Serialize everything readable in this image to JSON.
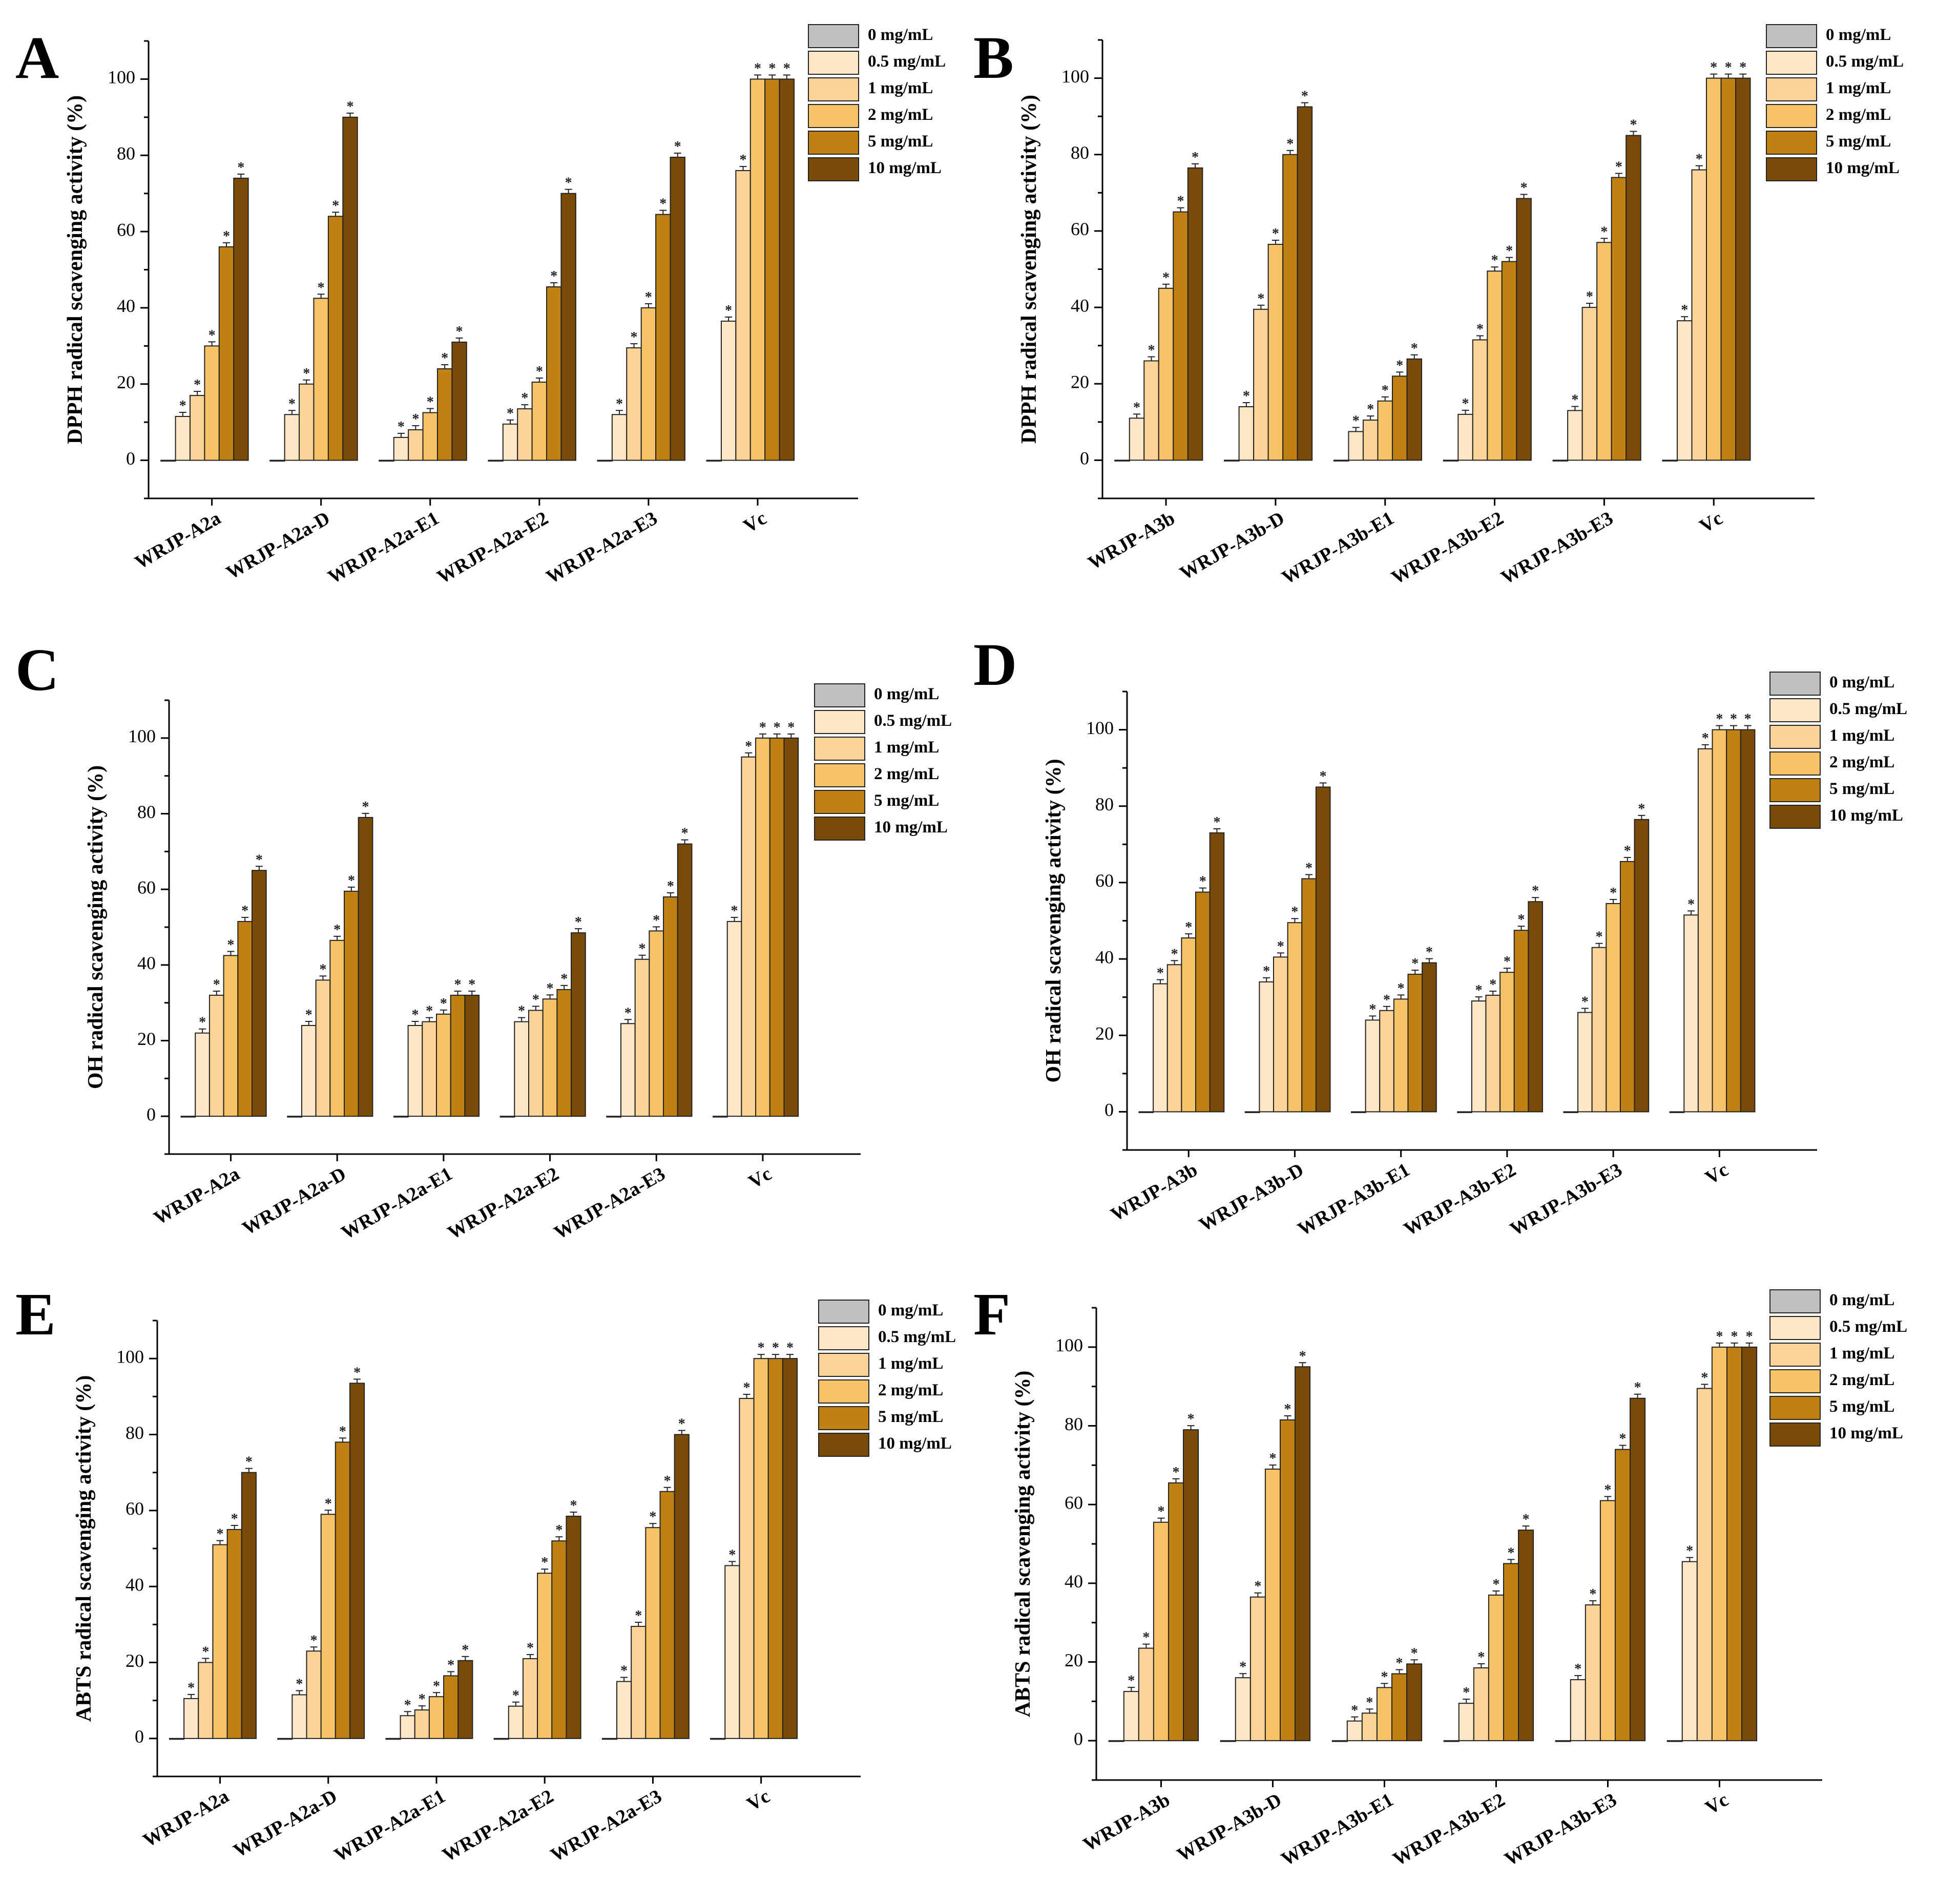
{
  "legend": [
    "0 mg/mL",
    "0.5 mg/mL",
    "1 mg/mL",
    "2 mg/mL",
    "5 mg/mL",
    "10 mg/mL"
  ],
  "colors": [
    "#c0c0c0",
    "#fde7c6",
    "#fdd497",
    "#f7c367",
    "#bf8212",
    "#7a4a08"
  ],
  "significance_mark": "*",
  "chart_data": [
    {
      "panel": "A",
      "type": "bar",
      "ylabel": "DPPH radical scavenging activity (%)",
      "ylim": [
        -10,
        110
      ],
      "yticks": [
        0,
        20,
        40,
        60,
        80,
        100
      ],
      "categories": [
        "WRJP-A2a",
        "WRJP-A2a-D",
        "WRJP-A2a-E1",
        "WRJP-A2a-E2",
        "WRJP-A2a-E3",
        "Vc"
      ],
      "series": [
        {
          "name": "0 mg/mL",
          "values": [
            0,
            0,
            0,
            0,
            0,
            0
          ]
        },
        {
          "name": "0.5 mg/mL",
          "values": [
            11.5,
            12,
            6,
            9.5,
            12,
            36.5
          ]
        },
        {
          "name": "1 mg/mL",
          "values": [
            17,
            20,
            8,
            13.5,
            29.5,
            76
          ]
        },
        {
          "name": "2 mg/mL",
          "values": [
            30,
            42.5,
            12.5,
            20.5,
            40,
            100
          ]
        },
        {
          "name": "5 mg/mL",
          "values": [
            56,
            64,
            24,
            45.5,
            64.5,
            100
          ]
        },
        {
          "name": "10 mg/mL",
          "values": [
            74,
            90,
            31,
            70,
            79.5,
            100
          ]
        }
      ]
    },
    {
      "panel": "B",
      "type": "bar",
      "ylabel": "DPPH radical scavenging activity (%)",
      "ylim": [
        -10,
        110
      ],
      "yticks": [
        0,
        20,
        40,
        60,
        80,
        100
      ],
      "categories": [
        "WRJP-A3b",
        "WRJP-A3b-D",
        "WRJP-A3b-E1",
        "WRJP-A3b-E2",
        "WRJP-A3b-E3",
        "Vc"
      ],
      "series": [
        {
          "name": "0 mg/mL",
          "values": [
            0,
            0,
            0,
            0,
            0,
            0
          ]
        },
        {
          "name": "0.5 mg/mL",
          "values": [
            11,
            14,
            7.5,
            12,
            13,
            36.5
          ]
        },
        {
          "name": "1 mg/mL",
          "values": [
            26,
            39.5,
            10.5,
            31.5,
            40,
            76
          ]
        },
        {
          "name": "2 mg/mL",
          "values": [
            45,
            56.5,
            15.5,
            49.5,
            57,
            100
          ]
        },
        {
          "name": "5 mg/mL",
          "values": [
            65,
            80,
            22,
            52,
            74,
            100
          ]
        },
        {
          "name": "10 mg/mL",
          "values": [
            76.5,
            92.5,
            26.5,
            68.5,
            85,
            100
          ]
        }
      ]
    },
    {
      "panel": "C",
      "type": "bar",
      "ylabel": "OH radical scavenging activity (%)",
      "ylim": [
        -10,
        110
      ],
      "yticks": [
        0,
        20,
        40,
        60,
        80,
        100
      ],
      "categories": [
        "WRJP-A2a",
        "WRJP-A2a-D",
        "WRJP-A2a-E1",
        "WRJP-A2a-E2",
        "WRJP-A2a-E3",
        "Vc"
      ],
      "series": [
        {
          "name": "0 mg/mL",
          "values": [
            0,
            0,
            0,
            0,
            0,
            0
          ]
        },
        {
          "name": "0.5 mg/mL",
          "values": [
            22,
            24,
            24,
            25,
            24.5,
            51.5
          ]
        },
        {
          "name": "1 mg/mL",
          "values": [
            32,
            36,
            25,
            28,
            41.5,
            95
          ]
        },
        {
          "name": "2 mg/mL",
          "values": [
            42.5,
            46.5,
            27,
            31,
            49,
            100
          ]
        },
        {
          "name": "5 mg/mL",
          "values": [
            51.5,
            59.5,
            32,
            33.5,
            58,
            100
          ]
        },
        {
          "name": "10 mg/mL",
          "values": [
            65,
            79,
            32,
            48.5,
            72,
            100
          ]
        }
      ]
    },
    {
      "panel": "D",
      "type": "bar",
      "ylabel": "OH radical scavenging activity (%)",
      "ylim": [
        -10,
        110
      ],
      "yticks": [
        0,
        20,
        40,
        60,
        80,
        100
      ],
      "categories": [
        "WRJP-A3b",
        "WRJP-A3b-D",
        "WRJP-A3b-E1",
        "WRJP-A3b-E2",
        "WRJP-A3b-E3",
        "Vc"
      ],
      "series": [
        {
          "name": "0 mg/mL",
          "values": [
            0,
            0,
            0,
            0,
            0,
            0
          ]
        },
        {
          "name": "0.5 mg/mL",
          "values": [
            33.5,
            34,
            24,
            29,
            26,
            51.5
          ]
        },
        {
          "name": "1 mg/mL",
          "values": [
            38.5,
            40.5,
            26.5,
            30.5,
            43,
            95
          ]
        },
        {
          "name": "2 mg/mL",
          "values": [
            45.5,
            49.5,
            29.5,
            36.5,
            54.5,
            100
          ]
        },
        {
          "name": "5 mg/mL",
          "values": [
            57.5,
            61,
            36,
            47.5,
            65.5,
            100
          ]
        },
        {
          "name": "10 mg/mL",
          "values": [
            73,
            85,
            39,
            55,
            76.5,
            100
          ]
        }
      ]
    },
    {
      "panel": "E",
      "type": "bar",
      "ylabel": "ABTS radical scavenging activity (%)",
      "ylim": [
        -10,
        110
      ],
      "yticks": [
        0,
        20,
        40,
        60,
        80,
        100
      ],
      "categories": [
        "WRJP-A2a",
        "WRJP-A2a-D",
        "WRJP-A2a-E1",
        "WRJP-A2a-E2",
        "WRJP-A2a-E3",
        "Vc"
      ],
      "series": [
        {
          "name": "0 mg/mL",
          "values": [
            0,
            0,
            0,
            0,
            0,
            0
          ]
        },
        {
          "name": "0.5 mg/mL",
          "values": [
            10.5,
            11.5,
            6,
            8.5,
            15,
            45.5
          ]
        },
        {
          "name": "1 mg/mL",
          "values": [
            20,
            23,
            7.5,
            21,
            29.5,
            89.5
          ]
        },
        {
          "name": "2 mg/mL",
          "values": [
            51,
            59,
            11,
            43.5,
            55.5,
            100
          ]
        },
        {
          "name": "5 mg/mL",
          "values": [
            55,
            78,
            16.5,
            52,
            65,
            100
          ]
        },
        {
          "name": "10 mg/mL",
          "values": [
            70,
            93.5,
            20.5,
            58.5,
            80,
            100
          ]
        }
      ]
    },
    {
      "panel": "F",
      "type": "bar",
      "ylabel": "ABTS radical scavenging activity (%)",
      "ylim": [
        -10,
        110
      ],
      "yticks": [
        0,
        20,
        40,
        60,
        80,
        100
      ],
      "categories": [
        "WRJP-A3b",
        "WRJP-A3b-D",
        "WRJP-A3b-E1",
        "WRJP-A3b-E2",
        "WRJP-A3b-E3",
        "Vc"
      ],
      "series": [
        {
          "name": "0 mg/mL",
          "values": [
            0,
            0,
            0,
            0,
            0,
            0
          ]
        },
        {
          "name": "0.5 mg/mL",
          "values": [
            12.5,
            16,
            5,
            9.5,
            15.5,
            45.5
          ]
        },
        {
          "name": "1 mg/mL",
          "values": [
            23.5,
            36.5,
            7,
            18.5,
            34.5,
            89.5
          ]
        },
        {
          "name": "2 mg/mL",
          "values": [
            55.5,
            69,
            13.5,
            37,
            61,
            100
          ]
        },
        {
          "name": "5 mg/mL",
          "values": [
            65.5,
            81.5,
            17,
            45,
            74,
            100
          ]
        },
        {
          "name": "10 mg/mL",
          "values": [
            79,
            95,
            19.5,
            53.5,
            87,
            100
          ]
        }
      ]
    }
  ]
}
